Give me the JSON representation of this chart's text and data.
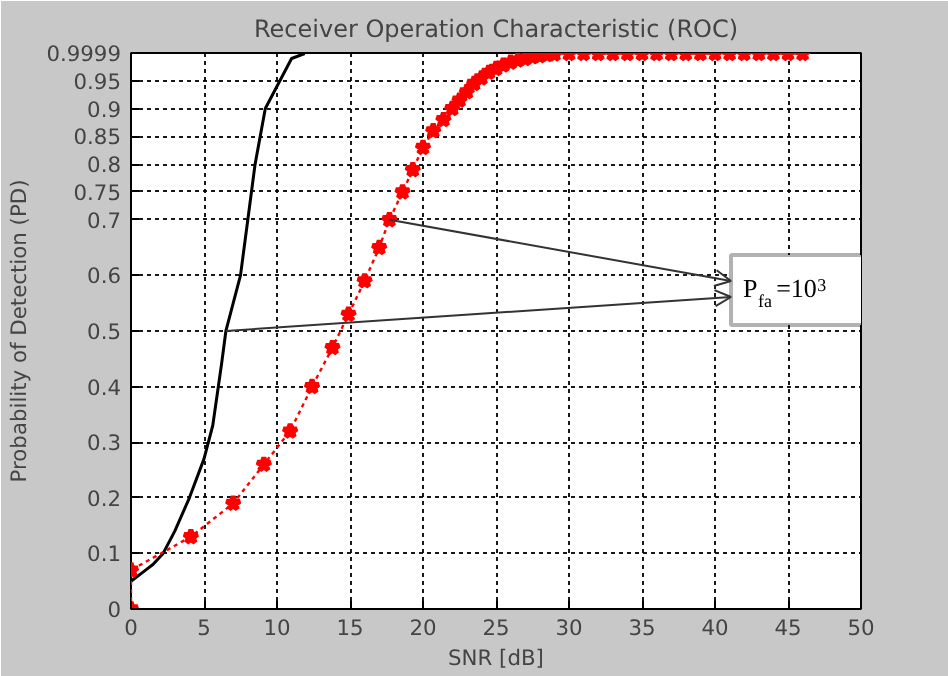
{
  "chart_data": {
    "type": "line",
    "title": "Receiver Operation Characteristic (ROC)",
    "xlabel": "SNR [dB]",
    "ylabel": "Probability of Detection (PD)",
    "xlim": [
      0,
      50
    ],
    "xticks": [
      0,
      5,
      10,
      15,
      20,
      25,
      30,
      35,
      40,
      45,
      50
    ],
    "ylim": [
      0,
      0.9999
    ],
    "yticks": [
      0,
      0.1,
      0.2,
      0.3,
      0.4,
      0.5,
      0.6,
      0.7,
      0.75,
      0.8,
      0.85,
      0.9,
      0.95,
      0.9999
    ],
    "grid": true,
    "series": [
      {
        "color": "#000000",
        "marker": "none",
        "line_style": "solid",
        "x": [
          0,
          1,
          1.5,
          2.2,
          3,
          4,
          5,
          5.6,
          6.2,
          6.5,
          7,
          7.5,
          8,
          8.5,
          9.2,
          10,
          11,
          11.9
        ],
        "values": [
          0.05,
          0.07,
          0.08,
          0.1,
          0.14,
          0.2,
          0.27,
          0.33,
          0.44,
          0.5,
          0.55,
          0.6,
          0.7,
          0.8,
          0.9,
          0.94,
          0.99,
          0.999
        ]
      },
      {
        "color": "#ff0000",
        "marker": "star",
        "line_style": "dotted",
        "x": [
          0,
          0,
          4.1,
          7,
          9.1,
          10.9,
          12.4,
          13.8,
          14.9,
          16,
          17,
          17.7,
          18.6,
          19.3,
          20,
          20.7,
          21.4,
          22,
          22.5,
          23,
          23.5,
          24,
          24.5,
          25,
          25.5,
          26,
          26.5,
          27,
          27.5,
          28,
          28.5,
          29,
          30,
          31,
          32,
          33,
          34,
          35,
          36,
          37,
          38,
          39,
          40,
          41,
          42,
          43,
          44,
          45,
          46
        ],
        "values": [
          0,
          0.07,
          0.13,
          0.19,
          0.26,
          0.32,
          0.4,
          0.47,
          0.53,
          0.59,
          0.65,
          0.7,
          0.75,
          0.79,
          0.83,
          0.86,
          0.88,
          0.9,
          0.915,
          0.93,
          0.945,
          0.955,
          0.965,
          0.972,
          0.978,
          0.983,
          0.987,
          0.99,
          0.993,
          0.995,
          0.997,
          0.998,
          0.999,
          0.999,
          0.999,
          0.999,
          0.999,
          0.999,
          0.999,
          0.999,
          0.999,
          0.999,
          0.999,
          0.999,
          0.999,
          0.999,
          0.999,
          0.999,
          0.999
        ]
      }
    ],
    "annotations": [
      {
        "text": "P$_{fa}$=10$^{3}$",
        "x": 17.7,
        "y": 0.7
      }
    ]
  }
}
